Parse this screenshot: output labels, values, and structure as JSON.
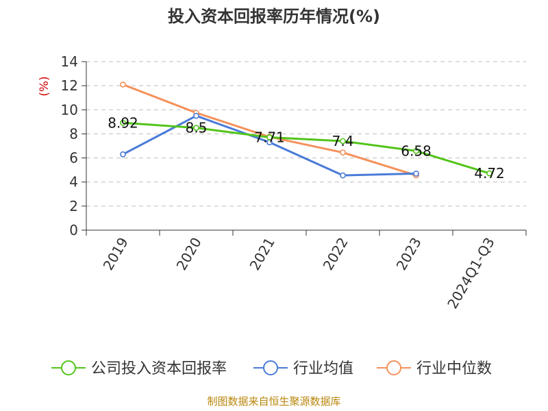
{
  "chart_data": {
    "type": "line",
    "title": "投入资本回报率历年情况(%)",
    "ylabel": "(%)",
    "xlabel": "",
    "categories": [
      "2019",
      "2020",
      "2021",
      "2022",
      "2023",
      "2024Q1-Q3"
    ],
    "ylim": [
      0,
      14
    ],
    "yticks": [
      0,
      2,
      4,
      6,
      8,
      10,
      12,
      14
    ],
    "grid": true,
    "legend_position": "bottom",
    "series": [
      {
        "name": "公司投入资本回报率",
        "color": "#52c41a",
        "values": [
          8.92,
          8.5,
          7.71,
          7.4,
          6.58,
          4.72
        ],
        "labels": [
          "8.92",
          "8.5",
          "7.71",
          "7.4",
          "6.58",
          "4.72"
        ]
      },
      {
        "name": "行业均值",
        "color": "#4a7bd8",
        "values": [
          6.3,
          9.5,
          7.3,
          4.55,
          4.7,
          null
        ]
      },
      {
        "name": "行业中位数",
        "color": "#f4915a",
        "values": [
          12.1,
          9.75,
          7.75,
          6.45,
          4.55,
          null
        ]
      }
    ]
  },
  "source": "制图数据来自恒生聚源数据库"
}
